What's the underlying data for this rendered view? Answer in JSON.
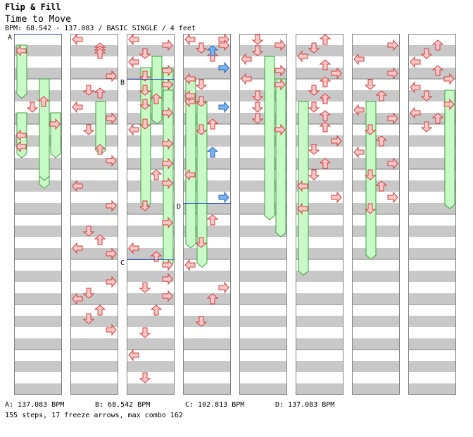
{
  "header": {
    "title": "Flip & Fill",
    "song": "Time to Move",
    "info": "BPM: 68.542 - 137.083 / BASIC SINGLE / 4 feet"
  },
  "bpm_changes": [
    {
      "label": "A",
      "text": "A: 137.083 BPM",
      "column": 0,
      "beat": 0
    },
    {
      "label": "B",
      "text": "B: 68.542 BPM",
      "column": 2,
      "beat": 4
    },
    {
      "label": "C",
      "text": "C: 102.813 BPM",
      "column": 2,
      "beat": 20
    },
    {
      "label": "D",
      "text": "D: 137.083 BPM",
      "column": 3,
      "beat": 15
    }
  ],
  "summary": "155 steps, 17 freeze arrows, max combo 162",
  "colors": {
    "arrow_fill": "#ffc8c8",
    "arrow_stroke": "#d23c3c",
    "blue_fill": "#78b4f0",
    "blue_stroke": "#2864b4",
    "freeze_fill": "#c8fac8",
    "freeze_stroke": "#3ca03c",
    "stripe": "#c8c8c8"
  },
  "chart_data": {
    "type": "step-chart",
    "columns": 8,
    "beats_per_column": 32,
    "lanes": [
      "left",
      "down",
      "up",
      "right"
    ],
    "notes": [
      [
        [
          4,
          0,
          "l",
          0
        ],
        [
          22,
          2,
          "u",
          0
        ],
        [
          24,
          1,
          "d",
          0
        ],
        [
          30,
          3,
          "r",
          0
        ],
        [
          34,
          0,
          "l",
          0
        ],
        [
          38,
          0,
          "l",
          0
        ]
      ],
      [
        [
          0,
          0,
          "l",
          0
        ],
        [
          3,
          2,
          "u",
          0
        ],
        [
          4,
          2,
          "u",
          0
        ],
        [
          5,
          2,
          "u",
          0
        ],
        [
          13,
          3,
          "r",
          0
        ],
        [
          18,
          1,
          "d",
          0
        ],
        [
          19,
          2,
          "u",
          0
        ],
        [
          24,
          0,
          "l",
          0
        ],
        [
          28,
          3,
          "r",
          0
        ],
        [
          32,
          1,
          "d",
          0
        ],
        [
          39,
          2,
          "u",
          0
        ],
        [
          43,
          3,
          "r",
          0
        ],
        [
          52,
          0,
          "l",
          0
        ],
        [
          59,
          3,
          "r",
          0
        ],
        [
          68,
          1,
          "d",
          0
        ],
        [
          71,
          2,
          "u",
          0
        ],
        [
          74,
          0,
          "l",
          0
        ],
        [
          76,
          3,
          "r",
          0
        ],
        [
          86,
          3,
          "r",
          0
        ],
        [
          90,
          1,
          "d",
          0
        ],
        [
          92,
          0,
          "l",
          0
        ],
        [
          96,
          2,
          "u",
          0
        ],
        [
          99,
          1,
          "d",
          0
        ],
        [
          103,
          3,
          "r",
          0
        ]
      ],
      [
        [
          0,
          0,
          "l",
          0
        ],
        [
          2,
          3,
          "r",
          0
        ],
        [
          5,
          1,
          "d",
          0
        ],
        [
          8,
          0,
          "l",
          0
        ],
        [
          11,
          3,
          "r",
          0
        ],
        [
          13,
          1,
          "d",
          0
        ],
        [
          16,
          3,
          "r",
          0
        ],
        [
          18,
          1,
          "d",
          0
        ],
        [
          21,
          2,
          "u",
          0
        ],
        [
          23,
          1,
          "d",
          0
        ],
        [
          26,
          3,
          "r",
          0
        ],
        [
          30,
          1,
          "d",
          0
        ],
        [
          32,
          0,
          "l",
          0
        ],
        [
          37,
          3,
          "r",
          0
        ],
        [
          44,
          3,
          "r",
          0
        ],
        [
          48,
          2,
          "u",
          0
        ],
        [
          51,
          3,
          "r",
          0
        ],
        [
          59,
          1,
          "d",
          0
        ],
        [
          65,
          3,
          "r",
          0
        ],
        [
          74,
          0,
          "l",
          0
        ],
        [
          77,
          2,
          "u",
          0
        ],
        [
          80,
          3,
          "r",
          0
        ],
        [
          85,
          3,
          "r",
          0
        ],
        [
          88,
          1,
          "d",
          0
        ],
        [
          91,
          3,
          "r",
          0
        ],
        [
          96,
          2,
          "u",
          0
        ],
        [
          104,
          1,
          "d",
          0
        ],
        [
          112,
          0,
          "l",
          0
        ],
        [
          120,
          1,
          "d",
          0
        ],
        [
          128,
          3,
          "r",
          0
        ],
        [
          131,
          1,
          "d",
          0
        ],
        [
          134,
          2,
          "u",
          0
        ],
        [
          142,
          0,
          "l",
          0
        ],
        [
          150,
          0,
          "l",
          0
        ],
        [
          158,
          2,
          "u",
          0
        ]
      ],
      [
        [
          0,
          0,
          "l",
          0
        ],
        [
          2,
          3,
          "r",
          0
        ],
        [
          4,
          2,
          "u",
          1
        ],
        [
          10,
          3,
          "r",
          1
        ],
        [
          16,
          1,
          "d",
          0
        ],
        [
          20,
          0,
          "l",
          0
        ],
        [
          22,
          1,
          "d",
          0
        ],
        [
          24,
          3,
          "r",
          1
        ],
        [
          32,
          1,
          "d",
          0
        ],
        [
          40,
          2,
          "u",
          1
        ],
        [
          48,
          0,
          "l",
          0
        ],
        [
          56,
          3,
          "r",
          1
        ],
        [
          64,
          2,
          "u",
          0
        ],
        [
          72,
          1,
          "d",
          0
        ],
        [
          80,
          0,
          "l",
          0
        ],
        [
          88,
          3,
          "r",
          0
        ],
        [
          92,
          2,
          "u",
          0
        ],
        [
          100,
          1,
          "d",
          0
        ]
      ],
      [
        [
          0,
          1,
          "d",
          0
        ],
        [
          2,
          3,
          "r",
          0
        ],
        [
          4,
          1,
          "d",
          0
        ],
        [
          7,
          0,
          "l",
          0
        ],
        [
          11,
          3,
          "r",
          0
        ],
        [
          14,
          0,
          "l",
          0
        ],
        [
          16,
          3,
          "r",
          0
        ],
        [
          20,
          1,
          "d",
          0
        ],
        [
          24,
          1,
          "d",
          0
        ],
        [
          28,
          1,
          "d",
          0
        ],
        [
          32,
          3,
          "r",
          0
        ]
      ],
      [
        [
          0,
          2,
          "u",
          0
        ],
        [
          3,
          1,
          "d",
          0
        ],
        [
          6,
          0,
          "l",
          0
        ],
        [
          9,
          2,
          "u",
          0
        ],
        [
          12,
          3,
          "r",
          0
        ],
        [
          15,
          2,
          "u",
          0
        ],
        [
          18,
          1,
          "d",
          0
        ],
        [
          21,
          2,
          "u",
          0
        ],
        [
          24,
          1,
          "d",
          0
        ],
        [
          27,
          2,
          "u",
          0
        ],
        [
          31,
          2,
          "u",
          0
        ],
        [
          36,
          3,
          "r",
          0
        ],
        [
          39,
          1,
          "d",
          0
        ],
        [
          44,
          2,
          "u",
          0
        ],
        [
          48,
          1,
          "d",
          0
        ],
        [
          52,
          0,
          "l",
          0
        ],
        [
          56,
          3,
          "r",
          0
        ],
        [
          60,
          0,
          "l",
          0
        ]
      ],
      [
        [
          2,
          3,
          "r",
          0
        ],
        [
          7,
          0,
          "l",
          0
        ],
        [
          12,
          3,
          "r",
          0
        ],
        [
          16,
          1,
          "d",
          0
        ],
        [
          20,
          2,
          "u",
          0
        ],
        [
          25,
          0,
          "l",
          0
        ],
        [
          28,
          3,
          "r",
          0
        ],
        [
          32,
          1,
          "d",
          0
        ],
        [
          36,
          2,
          "u",
          0
        ],
        [
          40,
          0,
          "l",
          0
        ],
        [
          44,
          3,
          "r",
          0
        ],
        [
          48,
          1,
          "d",
          0
        ],
        [
          52,
          2,
          "u",
          0
        ],
        [
          56,
          3,
          "r",
          0
        ],
        [
          60,
          1,
          "d",
          0
        ]
      ],
      [
        [
          2,
          2,
          "u",
          0
        ],
        [
          5,
          1,
          "d",
          0
        ],
        [
          8,
          0,
          "l",
          0
        ],
        [
          11,
          2,
          "u",
          0
        ],
        [
          14,
          3,
          "r",
          0
        ],
        [
          17,
          0,
          "l",
          0
        ],
        [
          20,
          1,
          "d",
          0
        ],
        [
          23,
          3,
          "r",
          0
        ],
        [
          26,
          0,
          "l",
          0
        ],
        [
          28,
          2,
          "u",
          0
        ],
        [
          31,
          1,
          "d",
          0
        ]
      ]
    ],
    "freezes": [
      [
        0,
        1,
        0,
        4.7
      ],
      [
        0,
        5,
        2,
        8.7
      ],
      [
        0,
        7,
        0,
        4.0
      ],
      [
        0,
        7,
        3,
        4.0
      ],
      [
        0,
        4,
        2,
        9.0
      ],
      [
        1,
        6,
        2,
        4.7
      ],
      [
        2,
        2,
        2,
        6.0
      ],
      [
        2,
        3,
        1,
        12.4
      ],
      [
        2,
        3,
        3,
        12.4
      ],
      [
        2,
        5,
        3,
        15.7
      ],
      [
        3,
        4,
        0,
        15.0
      ],
      [
        3,
        6,
        1,
        14.7
      ],
      [
        4,
        2,
        2,
        14.5
      ],
      [
        4,
        4,
        3,
        14.0
      ],
      [
        5,
        6,
        0,
        15.4
      ],
      [
        6,
        6,
        1,
        14.0
      ],
      [
        7,
        5,
        3,
        10.5
      ]
    ]
  }
}
